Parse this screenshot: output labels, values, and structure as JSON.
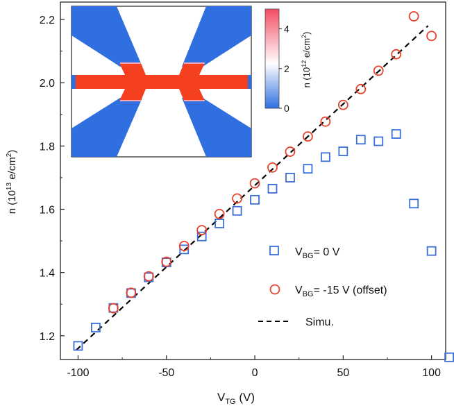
{
  "chart_data": {
    "type": "scatter",
    "xlabel_main": "V",
    "xlabel_sub": "TG",
    "xlabel_unit": " (V)",
    "ylabel_prefix": "n (10",
    "ylabel_exp": "13",
    "ylabel_suffix": " e/cm",
    "ylabel_sq": "2",
    "ylabel_close": ")",
    "xlim": [
      -110,
      108
    ],
    "ylim": [
      1.125,
      2.255
    ],
    "xticks": [
      -100,
      -50,
      0,
      50,
      100
    ],
    "xtick_labels": [
      "-100",
      "-50",
      "0",
      "50",
      "100"
    ],
    "yticks": [
      1.2,
      1.4,
      1.6,
      1.8,
      2.0,
      2.2
    ],
    "ytick_labels": [
      "1.2",
      "1.4",
      "1.6",
      "1.8",
      "2.0",
      "2.2"
    ],
    "series": [
      {
        "name": "VBG0",
        "legend_main": "V",
        "legend_sub": "BG",
        "legend_rest": "= 0 V",
        "marker": "square",
        "color": "#3a6fd8",
        "points": [
          [
            -100,
            1.168
          ],
          [
            -90,
            1.226
          ],
          [
            -80,
            1.288
          ],
          [
            -70,
            1.335
          ],
          [
            -60,
            1.385
          ],
          [
            -50,
            1.432
          ],
          [
            -40,
            1.473
          ],
          [
            -30,
            1.514
          ],
          [
            -20,
            1.555
          ],
          [
            -10,
            1.595
          ],
          [
            0,
            1.63
          ],
          [
            10,
            1.665
          ],
          [
            20,
            1.7
          ],
          [
            30,
            1.728
          ],
          [
            40,
            1.765
          ],
          [
            50,
            1.783
          ],
          [
            60,
            1.82
          ],
          [
            70,
            1.815
          ],
          [
            80,
            1.838
          ],
          [
            90,
            1.618
          ],
          [
            100,
            1.468
          ],
          [
            110,
            1.132
          ]
        ]
      },
      {
        "name": "VBG-15",
        "legend_main": "V",
        "legend_sub": "BG",
        "legend_rest": "= -15 V (offset)",
        "marker": "circle",
        "color": "#e8402a",
        "points": [
          [
            -80,
            1.287
          ],
          [
            -70,
            1.336
          ],
          [
            -60,
            1.388
          ],
          [
            -50,
            1.434
          ],
          [
            -40,
            1.484
          ],
          [
            -30,
            1.534
          ],
          [
            -20,
            1.585
          ],
          [
            -10,
            1.634
          ],
          [
            0,
            1.682
          ],
          [
            10,
            1.732
          ],
          [
            20,
            1.782
          ],
          [
            30,
            1.83
          ],
          [
            40,
            1.877
          ],
          [
            50,
            1.93
          ],
          [
            60,
            1.98
          ],
          [
            70,
            2.038
          ],
          [
            80,
            2.09
          ],
          [
            90,
            2.21
          ],
          [
            100,
            2.148
          ]
        ]
      },
      {
        "name": "Simu",
        "legend_main": "Simu.",
        "marker": "dashed-line",
        "color": "#000000",
        "points": [
          [
            -101,
            1.155
          ],
          [
            98,
            2.18
          ]
        ]
      }
    ],
    "inset": {
      "colorbar_ticks": [
        0,
        2,
        4
      ],
      "colorbar_tick_labels": [
        "0",
        "2",
        "4"
      ],
      "colorbar_label_prefix": "n (10",
      "colorbar_label_exp": "12",
      "colorbar_label_suffix": " e/cm",
      "colorbar_label_sq": "2",
      "colorbar_label_close": ")",
      "colorbar_max": 5,
      "colors": {
        "low": "#2f6fe0",
        "mid": "#ffffff",
        "high": "#f24d63",
        "channel": "#f4401f",
        "gate": "#2f6fe0"
      }
    }
  }
}
